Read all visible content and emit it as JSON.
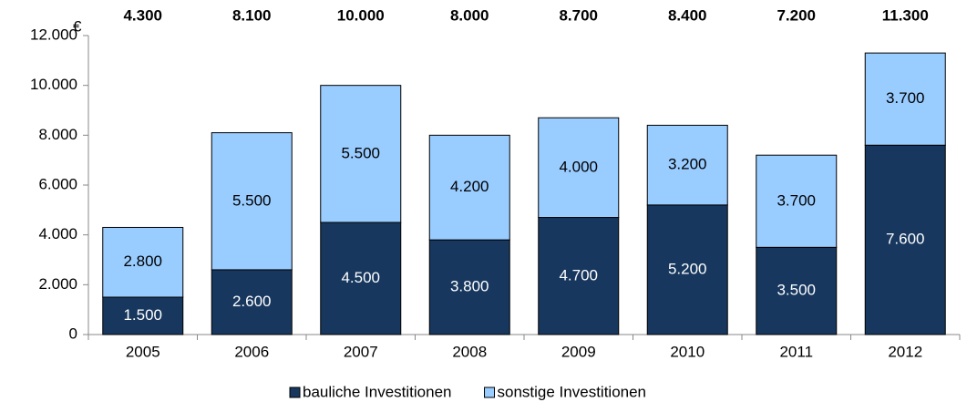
{
  "chart_data": {
    "type": "stacked_bar",
    "y_unit": "€",
    "categories": [
      "2005",
      "2006",
      "2007",
      "2008",
      "2009",
      "2010",
      "2011",
      "2012"
    ],
    "series": [
      {
        "name": "bauliche Investitionen",
        "color": "#17375e",
        "values": [
          1500,
          2600,
          4500,
          3800,
          4700,
          5200,
          3500,
          7600
        ],
        "value_labels": [
          "1.500",
          "2.600",
          "4.500",
          "3.800",
          "4.700",
          "5.200",
          "3.500",
          "7.600"
        ]
      },
      {
        "name": "sonstige Investitionen",
        "color": "#99ccff",
        "values": [
          2800,
          5500,
          5500,
          4200,
          4000,
          3200,
          3700,
          3700
        ],
        "value_labels": [
          "2.800",
          "5.500",
          "5.500",
          "4.200",
          "4.000",
          "3.200",
          "3.700",
          "3.700"
        ]
      }
    ],
    "totals": {
      "values": [
        4300,
        8100,
        10000,
        8000,
        8700,
        8400,
        7200,
        11300
      ],
      "value_labels": [
        "4.300",
        "8.100",
        "10.000",
        "8.000",
        "8.700",
        "8.400",
        "7.200",
        "11.300"
      ]
    },
    "ylim": [
      0,
      12000
    ],
    "yticks": [
      0,
      {
        "value": 2000,
        "label": "2.000"
      },
      {
        "value": 4000,
        "label": "4.000"
      },
      {
        "value": 6000,
        "label": "6.000"
      },
      {
        "value": 8000,
        "label": "8.000"
      },
      {
        "value": 10000,
        "label": "10.000"
      },
      {
        "value": 12000,
        "label": "12.000"
      }
    ],
    "grid": false,
    "legend": "bottom"
  }
}
